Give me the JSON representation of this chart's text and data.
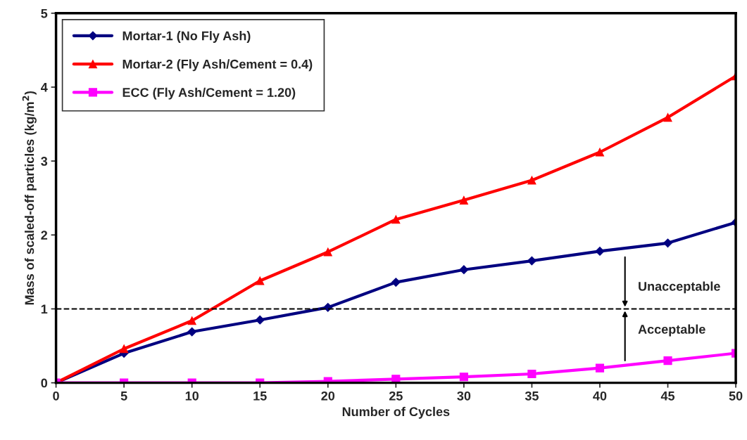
{
  "chart_data": {
    "type": "line",
    "xlabel": "Number of Cycles",
    "ylabel": "Mass of scaled-off particles (kg/m$^{2}$)",
    "x": [
      0,
      5,
      10,
      15,
      20,
      25,
      30,
      35,
      40,
      45,
      50
    ],
    "series": [
      {
        "name": "Mortar-1 (No Fly Ash)",
        "color": "#000080",
        "marker": "diamond",
        "values": [
          0,
          0.4,
          0.69,
          0.85,
          1.02,
          1.36,
          1.53,
          1.65,
          1.78,
          1.89,
          2.17
        ]
      },
      {
        "name": "Mortar-2 (Fly Ash/Cement = 0.4)",
        "color": "#ff0000",
        "marker": "triangle",
        "values": [
          0,
          0.46,
          0.84,
          1.38,
          1.77,
          2.21,
          2.47,
          2.74,
          3.12,
          3.59,
          4.15
        ]
      },
      {
        "name": "ECC (Fly Ash/Cement = 1.20)",
        "color": "#ff00ff",
        "marker": "square",
        "values": [
          0,
          0,
          0,
          0,
          0.02,
          0.05,
          0.08,
          0.12,
          0.2,
          0.3,
          0.4
        ]
      }
    ],
    "xlim": [
      0,
      50
    ],
    "xticks": [
      0,
      5,
      10,
      15,
      20,
      25,
      30,
      35,
      40,
      45,
      50
    ],
    "ylim": [
      0,
      5
    ],
    "yticks": [
      0,
      1,
      2,
      3,
      4,
      5
    ],
    "ref_lines": [
      {
        "axis": "y",
        "value": 1,
        "color": "#000000",
        "line_style": "dashed"
      }
    ],
    "annotations": [
      "Unacceptable",
      "Acceptable"
    ],
    "grid": false,
    "legend": "top left",
    "line_style": "solid"
  }
}
